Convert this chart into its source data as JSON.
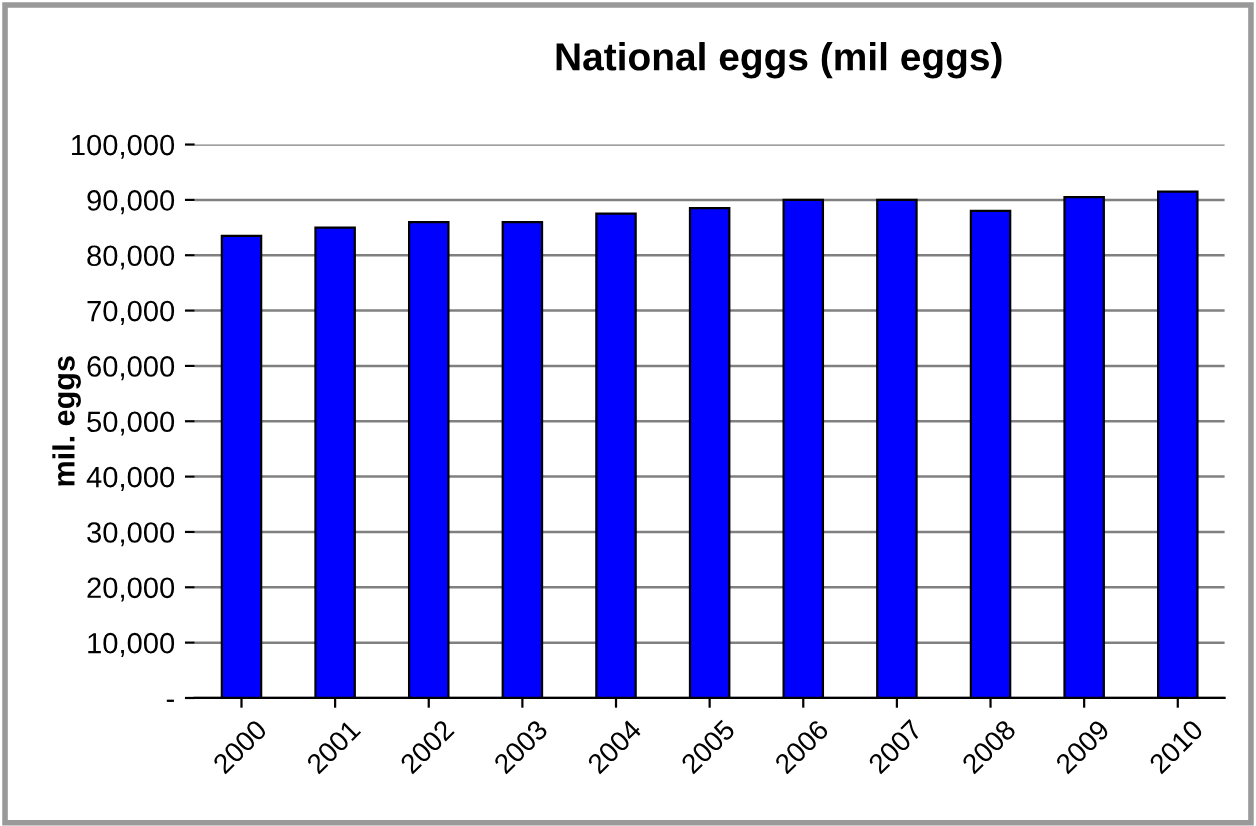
{
  "chart_data": {
    "type": "bar",
    "title": "National eggs (mil eggs)",
    "ylabel": "mil. eggs",
    "categories": [
      "2000",
      "2001",
      "2002",
      "2003",
      "2004",
      "2005",
      "2006",
      "2007",
      "2008",
      "2009",
      "2010"
    ],
    "values": [
      83500,
      85000,
      86000,
      86000,
      87500,
      88500,
      90000,
      90000,
      88000,
      90500,
      91500
    ],
    "color": "#0000ff",
    "ylim": [
      0,
      100000
    ],
    "yticks": [
      {
        "value": 0,
        "label": "-"
      },
      {
        "value": 10000,
        "label": "10,000"
      },
      {
        "value": 20000,
        "label": "20,000"
      },
      {
        "value": 30000,
        "label": "30,000"
      },
      {
        "value": 40000,
        "label": "40,000"
      },
      {
        "value": 50000,
        "label": "50,000"
      },
      {
        "value": 60000,
        "label": "60,000"
      },
      {
        "value": 70000,
        "label": "70,000"
      },
      {
        "value": 80000,
        "label": "80,000"
      },
      {
        "value": 90000,
        "label": "90,000"
      },
      {
        "value": 100000,
        "label": "100,000"
      }
    ],
    "grid": "y"
  }
}
